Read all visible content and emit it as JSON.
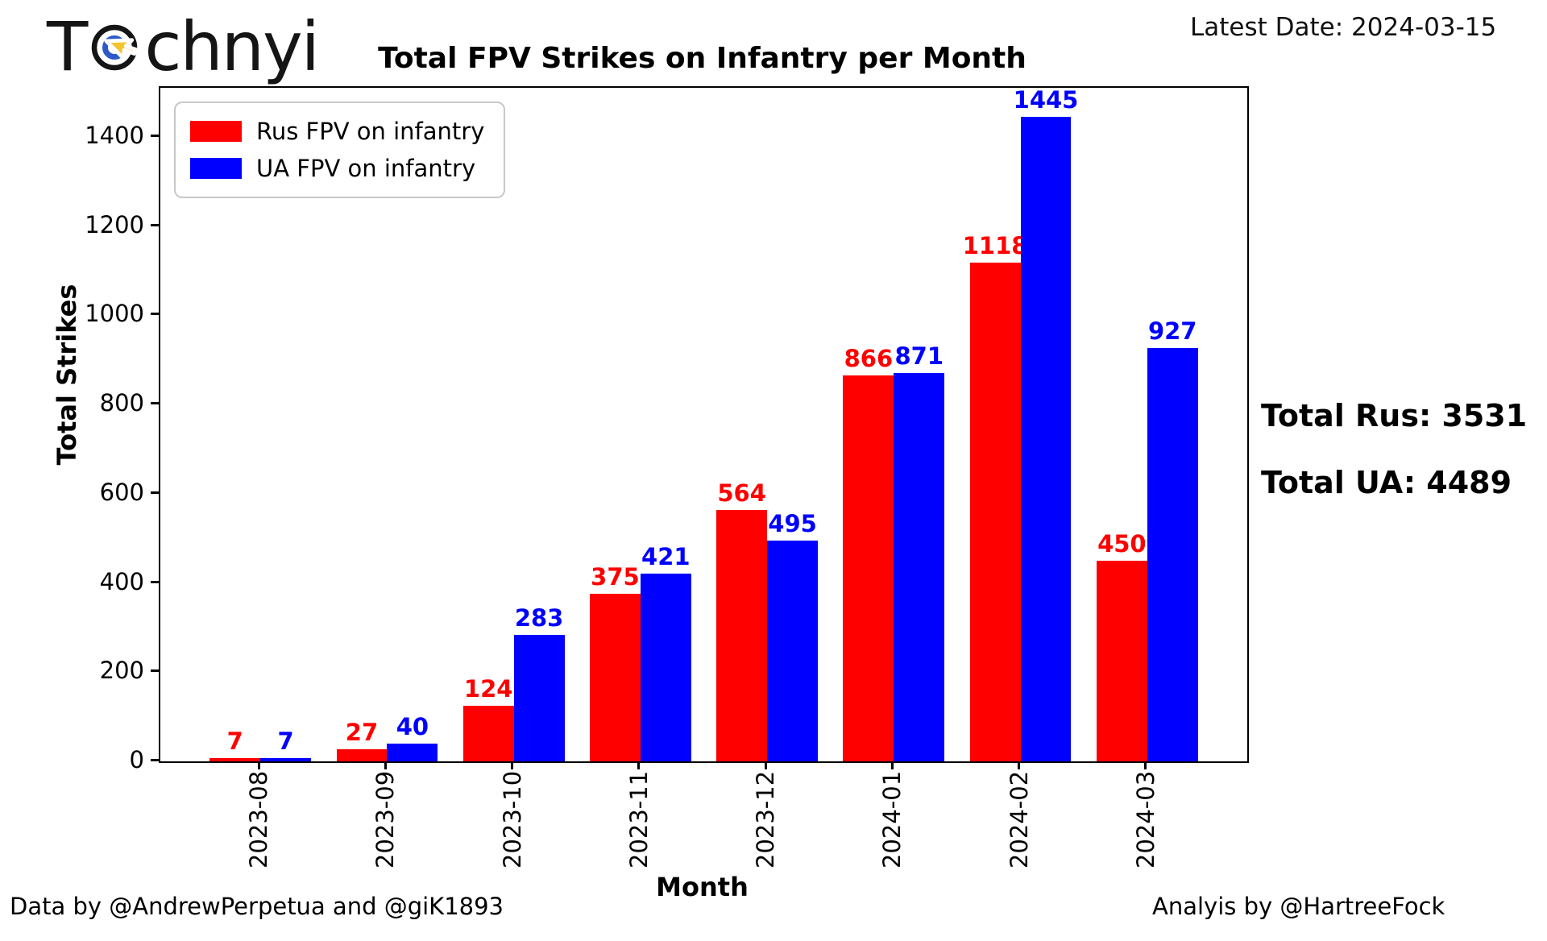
{
  "logo": {
    "text_start": "T",
    "text_end": "chnyi"
  },
  "header": {
    "latest_date_label": "Latest Date: 2024-03-15"
  },
  "chart_data": {
    "type": "bar",
    "title": "Total FPV Strikes on Infantry per Month",
    "xlabel": "Month",
    "ylabel": "Total Strikes",
    "categories": [
      "2023-08",
      "2023-09",
      "2023-10",
      "2023-11",
      "2023-12",
      "2024-01",
      "2024-02",
      "2024-03"
    ],
    "series": [
      {
        "name": "Rus FPV on infantry",
        "color": "#ff0000",
        "values": [
          7,
          27,
          124,
          375,
          564,
          866,
          1118,
          450
        ]
      },
      {
        "name": "UA FPV on infantry",
        "color": "#0000ff",
        "values": [
          7,
          40,
          283,
          421,
          495,
          871,
          1445,
          927
        ]
      }
    ],
    "yticks": [
      0,
      200,
      400,
      600,
      800,
      1000,
      1200,
      1400
    ],
    "ylim": [
      0,
      1510
    ],
    "bar_value_labels": true,
    "legend_position": "upper-left",
    "grid": false
  },
  "annotations": {
    "total_rus": "Total Rus: 3531",
    "total_ua": "Total UA: 4489"
  },
  "footer": {
    "left": "Data by @AndrewPerpetua and @giK1893",
    "right": "Analyis by @HartreeFock"
  }
}
